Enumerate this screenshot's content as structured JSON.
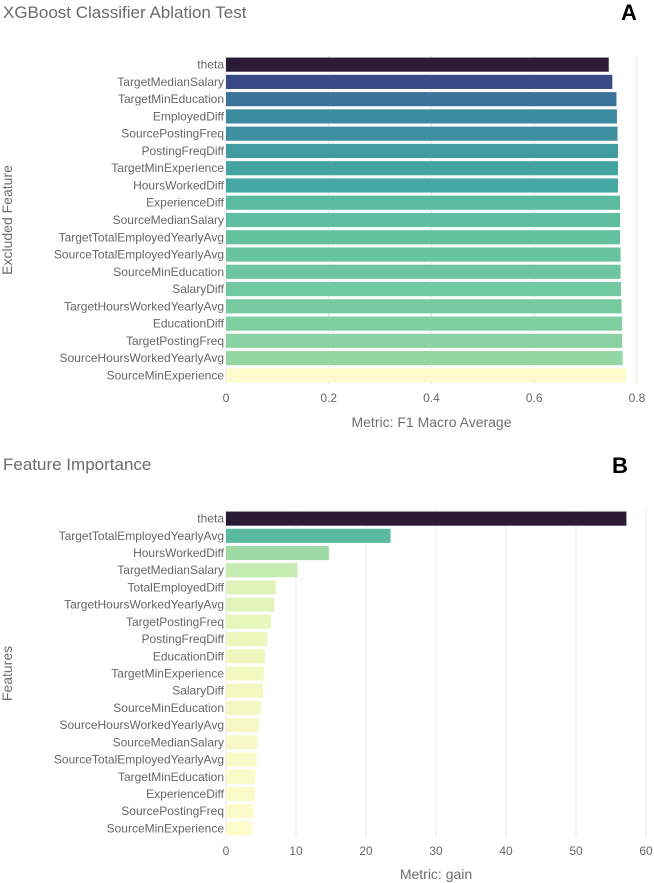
{
  "chart_data": [
    {
      "type": "bar",
      "orientation": "horizontal",
      "panel_label": "A",
      "title": "XGBoost Classifier Ablation Test",
      "xlabel": "Metric: F1 Macro Average",
      "ylabel": "Excluded Feature",
      "xlim": [
        0,
        0.8
      ],
      "xticks": [
        "0",
        "0.2",
        "0.4",
        "0.6",
        "0.8"
      ],
      "xtick_values": [
        0,
        0.2,
        0.4,
        0.6,
        0.8
      ],
      "categories": [
        "theta",
        "TargetMedianSalary",
        "TargetMinEducation",
        "EmployedDiff",
        "SourcePostingFreq",
        "PostingFreqDiff",
        "TargetMinExperience",
        "HoursWorkedDiff",
        "ExperienceDiff",
        "SourceMedianSalary",
        "TargetTotalEmployedYearlyAvg",
        "SourceTotalEmployedYearlyAvg",
        "SourceMinEducation",
        "SalaryDiff",
        "TargetHoursWorkedYearlyAvg",
        "EducationDiff",
        "TargetPostingFreq",
        "SourceHoursWorkedYearlyAvg",
        "SourceMinExperience"
      ],
      "values": [
        0.745,
        0.752,
        0.76,
        0.761,
        0.762,
        0.763,
        0.763,
        0.763,
        0.767,
        0.767,
        0.767,
        0.768,
        0.768,
        0.769,
        0.77,
        0.771,
        0.771,
        0.772,
        0.779
      ],
      "colors": [
        "#2a1a36",
        "#3a4a86",
        "#3b739a",
        "#3e8a9f",
        "#3f8fa0",
        "#419ba1",
        "#43a3a1",
        "#45a8a2",
        "#5bbba1",
        "#60bea0",
        "#64c1a0",
        "#68c3a0",
        "#6cc5a0",
        "#72c8a0",
        "#78cba0",
        "#80cfa0",
        "#88d3a1",
        "#92d7a3",
        "#fdfacc"
      ]
    },
    {
      "type": "bar",
      "orientation": "horizontal",
      "panel_label": "B",
      "title": "Feature Importance",
      "xlabel": "Metric: gain",
      "ylabel": "Features",
      "xlim": [
        0,
        60
      ],
      "xticks": [
        "0",
        "10",
        "20",
        "30",
        "40",
        "50",
        "60"
      ],
      "xtick_values": [
        0,
        10,
        20,
        30,
        40,
        50,
        60
      ],
      "categories": [
        "theta",
        "TargetTotalEmployedYearlyAvg",
        "HoursWorkedDiff",
        "TargetMedianSalary",
        "TotalEmployedDiff",
        "TargetHoursWorkedYearlyAvg",
        "TargetPostingFreq",
        "PostingFreqDiff",
        "EducationDiff",
        "TargetMinExperience",
        "SalaryDiff",
        "SourceMinEducation",
        "SourceHoursWorkedYearlyAvg",
        "SourceMedianSalary",
        "SourceTotalEmployedYearlyAvg",
        "TargetMinEducation",
        "ExperienceDiff",
        "SourcePostingFreq",
        "SourceMinExperience"
      ],
      "values": [
        57.2,
        23.5,
        14.7,
        10.2,
        7.1,
        6.9,
        6.4,
        5.9,
        5.6,
        5.4,
        5.3,
        5.0,
        4.7,
        4.5,
        4.4,
        4.2,
        4.1,
        3.9,
        3.7
      ],
      "colors": [
        "#2a1a36",
        "#5bb9a1",
        "#9ddaa6",
        "#c6ebb1",
        "#dff2b8",
        "#e2f3b9",
        "#e8f5bb",
        "#ecf6bd",
        "#eff7bf",
        "#f1f8c0",
        "#f2f8c0",
        "#f4f9c3",
        "#f6f9c5",
        "#f7fac6",
        "#f8fac7",
        "#f9fbc8",
        "#fafbc9",
        "#fbfbca",
        "#fcfbcb"
      ]
    }
  ]
}
